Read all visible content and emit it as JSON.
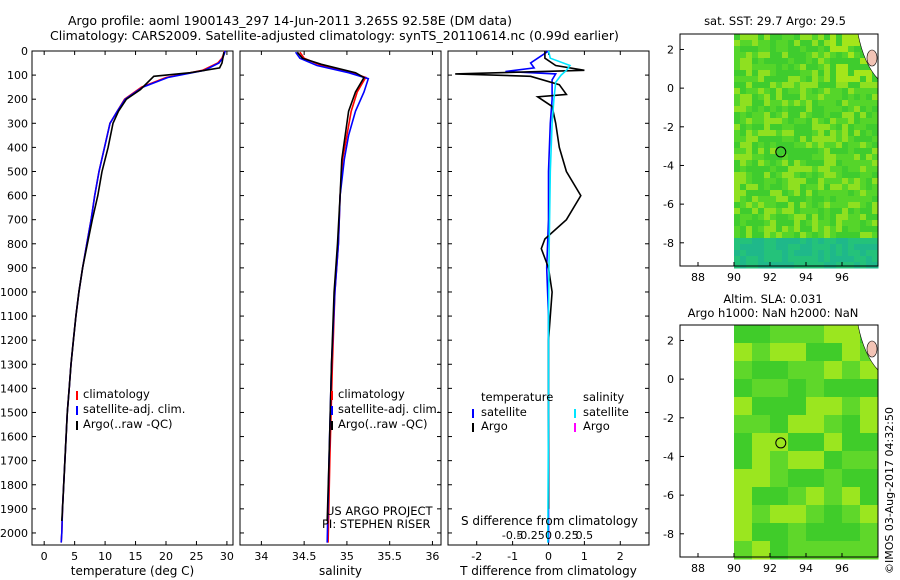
{
  "header": {
    "title_line1": "Argo profile: aoml 1900143_297 14-Jun-2011 3.265S 92.58E (DM data)",
    "title_line2": "Climatology: CARS2009. Satellite-adjusted climatology: synTS_20110614.nc (0.99d earlier)"
  },
  "side_stamp": "©IMOS 03-Aug-2017 04:32:50",
  "colors": {
    "climatology": "#ff0000",
    "satellite": "#0000ff",
    "argo": "#000000",
    "salinity_satellite": "#00e5ff",
    "salinity_argo": "#ff00ff",
    "map_land": "#ffffff",
    "map_green": "#33dd22"
  },
  "chart_data": [
    {
      "type": "line",
      "id": "temperature",
      "xlabel": "temperature (deg C)",
      "ylabel": "",
      "xlim": [
        -2,
        31
      ],
      "ylim": [
        2050,
        0
      ],
      "xticks": [
        0,
        5,
        10,
        15,
        20,
        25,
        30
      ],
      "yticks": [
        0,
        100,
        200,
        300,
        400,
        500,
        600,
        700,
        800,
        900,
        1000,
        1100,
        1200,
        1300,
        1400,
        1500,
        1600,
        1700,
        1800,
        1900,
        2000
      ],
      "legend": [
        "climatology",
        "satellite-adj. clim.",
        "Argo(..raw -QC)"
      ],
      "series": [
        {
          "name": "climatology",
          "color": "#ff0000",
          "points": [
            [
              29.6,
              0
            ],
            [
              29.5,
              10
            ],
            [
              29.2,
              30
            ],
            [
              28.5,
              50
            ],
            [
              26,
              80
            ],
            [
              20,
              110
            ],
            [
              16,
              150
            ],
            [
              13.2,
              200
            ],
            [
              12,
              250
            ],
            [
              10.8,
              300
            ],
            [
              9.9,
              400
            ],
            [
              9,
              500
            ],
            [
              8.3,
              600
            ],
            [
              7.7,
              700
            ],
            [
              7,
              800
            ],
            [
              6.3,
              900
            ],
            [
              5.7,
              1000
            ],
            [
              5.2,
              1100
            ],
            [
              4.8,
              1200
            ],
            [
              4.4,
              1300
            ],
            [
              4.1,
              1400
            ],
            [
              3.8,
              1500
            ],
            [
              3.6,
              1600
            ],
            [
              3.4,
              1700
            ],
            [
              3.2,
              1800
            ],
            [
              3,
              1900
            ],
            [
              2.9,
              2000
            ],
            [
              2.8,
              2040
            ]
          ]
        },
        {
          "name": "satellite-adj. clim.",
          "color": "#0000ff",
          "points": [
            [
              29.7,
              0
            ],
            [
              29.6,
              10
            ],
            [
              29.3,
              30
            ],
            [
              28.7,
              50
            ],
            [
              26.3,
              80
            ],
            [
              20.3,
              110
            ],
            [
              16.2,
              150
            ],
            [
              13.3,
              200
            ],
            [
              12,
              250
            ],
            [
              10.8,
              300
            ],
            [
              9.9,
              400
            ],
            [
              9,
              500
            ],
            [
              8.3,
              600
            ],
            [
              7.7,
              700
            ],
            [
              7,
              800
            ],
            [
              6.3,
              900
            ],
            [
              5.7,
              1000
            ],
            [
              5.2,
              1100
            ],
            [
              4.8,
              1200
            ],
            [
              4.4,
              1300
            ],
            [
              4.1,
              1400
            ],
            [
              3.8,
              1500
            ],
            [
              3.6,
              1600
            ],
            [
              3.4,
              1700
            ],
            [
              3.2,
              1800
            ],
            [
              3,
              1900
            ],
            [
              2.9,
              2000
            ],
            [
              2.8,
              2040
            ]
          ]
        },
        {
          "name": "Argo(..raw -QC)",
          "color": "#000000",
          "points": [
            [
              29.5,
              5
            ],
            [
              29.4,
              20
            ],
            [
              29.2,
              50
            ],
            [
              28.8,
              70
            ],
            [
              24,
              90
            ],
            [
              18,
              105
            ],
            [
              15.8,
              160
            ],
            [
              13.5,
              200
            ],
            [
              12.2,
              250
            ],
            [
              11.3,
              300
            ],
            [
              10.5,
              400
            ],
            [
              9.5,
              500
            ],
            [
              8.8,
              600
            ],
            [
              7.9,
              700
            ],
            [
              7.1,
              800
            ],
            [
              6.3,
              900
            ],
            [
              5.7,
              1000
            ],
            [
              5.2,
              1100
            ],
            [
              4.8,
              1200
            ],
            [
              4.4,
              1300
            ],
            [
              4.1,
              1400
            ],
            [
              3.8,
              1500
            ],
            [
              3.6,
              1600
            ],
            [
              3.4,
              1700
            ],
            [
              3.2,
              1800
            ],
            [
              3,
              1900
            ],
            [
              2.9,
              1950
            ]
          ]
        }
      ]
    },
    {
      "type": "line",
      "id": "salinity",
      "xlabel": "salinity",
      "xlim": [
        33.75,
        36.1
      ],
      "ylim": [
        2050,
        0
      ],
      "xticks": [
        34,
        34.5,
        35,
        35.5,
        36
      ],
      "xticklabels": [
        "34",
        "34.5",
        "35",
        "35.5",
        "36"
      ],
      "legend": [
        "climatology",
        "satellite-adj. clim.",
        "Argo(..raw -QC)"
      ],
      "credit_line1": "US ARGO PROJECT",
      "credit_line2": "PI: STEPHEN RISER",
      "series": [
        {
          "name": "climatology",
          "color": "#ff0000",
          "points": [
            [
              34.45,
              5
            ],
            [
              34.5,
              30
            ],
            [
              34.7,
              60
            ],
            [
              35.05,
              90
            ],
            [
              35.22,
              110
            ],
            [
              35.12,
              170
            ],
            [
              35.05,
              250
            ],
            [
              35,
              350
            ],
            [
              34.95,
              450
            ],
            [
              34.92,
              600
            ],
            [
              34.9,
              800
            ],
            [
              34.86,
              1000
            ],
            [
              34.83,
              1300
            ],
            [
              34.8,
              1700
            ],
            [
              34.78,
              2040
            ]
          ]
        },
        {
          "name": "satellite-adj. clim.",
          "color": "#0000ff",
          "points": [
            [
              34.4,
              5
            ],
            [
              34.45,
              30
            ],
            [
              34.65,
              60
            ],
            [
              35.02,
              90
            ],
            [
              35.25,
              115
            ],
            [
              35.2,
              170
            ],
            [
              35.1,
              250
            ],
            [
              35.02,
              350
            ],
            [
              34.97,
              450
            ],
            [
              34.92,
              600
            ],
            [
              34.9,
              800
            ],
            [
              34.86,
              1000
            ],
            [
              34.82,
              1300
            ],
            [
              34.79,
              1700
            ],
            [
              34.77,
              2040
            ]
          ]
        },
        {
          "name": "Argo(..raw -QC)",
          "color": "#000000",
          "points": [
            [
              34.42,
              5
            ],
            [
              34.48,
              30
            ],
            [
              34.7,
              55
            ],
            [
              35.1,
              90
            ],
            [
              35.2,
              110
            ],
            [
              35.1,
              170
            ],
            [
              35.02,
              250
            ],
            [
              34.98,
              350
            ],
            [
              34.94,
              450
            ],
            [
              34.92,
              600
            ],
            [
              34.89,
              800
            ],
            [
              34.85,
              1000
            ],
            [
              34.82,
              1300
            ],
            [
              34.79,
              1700
            ],
            [
              34.77,
              1950
            ]
          ]
        }
      ]
    },
    {
      "type": "line",
      "id": "differences",
      "xlabel": "T difference from climatology",
      "top_axis_label": "S difference from climatology",
      "xlim": [
        -2.8,
        2.8
      ],
      "ylim": [
        2050,
        0
      ],
      "xticks": [
        -2,
        -1,
        0,
        1,
        2
      ],
      "xticklabels": [
        "-2",
        "-1",
        "0",
        "1",
        "2"
      ],
      "sticks": [
        -0.5,
        -0.25,
        0,
        0.25,
        0.5
      ],
      "sticklabels": [
        "-0.5",
        "-0.25",
        "0",
        "0.25",
        "0.5"
      ],
      "legend": {
        "temperature_title": "temperature",
        "salinity_title": "salinity",
        "t_satellite": "satellite",
        "t_argo": "Argo",
        "s_satellite": "satellite",
        "s_argo": "Argo"
      },
      "series": [
        {
          "name": "T satellite",
          "color": "#0000ff",
          "points": [
            [
              0,
              0
            ],
            [
              -0.2,
              20
            ],
            [
              -0.5,
              50
            ],
            [
              -0.4,
              70
            ],
            [
              -1.2,
              85
            ],
            [
              0.2,
              95
            ],
            [
              0.1,
              120
            ],
            [
              0.1,
              200
            ],
            [
              0.05,
              300
            ],
            [
              0,
              500
            ],
            [
              0,
              700
            ],
            [
              -0.05,
              900
            ],
            [
              0,
              1100
            ],
            [
              0,
              1500
            ],
            [
              0,
              2040
            ]
          ]
        },
        {
          "name": "T Argo",
          "color": "#000000",
          "points": [
            [
              -0.1,
              0
            ],
            [
              -0.1,
              30
            ],
            [
              0.2,
              60
            ],
            [
              1,
              80
            ],
            [
              -2.6,
              95
            ],
            [
              -0.5,
              105
            ],
            [
              0.3,
              140
            ],
            [
              0.5,
              180
            ],
            [
              -0.3,
              190
            ],
            [
              0.1,
              230
            ],
            [
              0.2,
              300
            ],
            [
              0.3,
              400
            ],
            [
              0.5,
              500
            ],
            [
              0.9,
              600
            ],
            [
              0.5,
              700
            ],
            [
              -0.1,
              780
            ],
            [
              -0.2,
              820
            ],
            [
              0,
              900
            ],
            [
              0.1,
              1000
            ],
            [
              0,
              1200
            ],
            [
              0,
              1500
            ],
            [
              0,
              1900
            ]
          ]
        },
        {
          "name": "S satellite",
          "color": "#00e5ff",
          "points": [
            [
              0,
              0
            ],
            [
              0.05,
              30
            ],
            [
              0.6,
              60
            ],
            [
              0.5,
              80
            ],
            [
              0.35,
              100
            ],
            [
              0.2,
              130
            ],
            [
              0.15,
              200
            ],
            [
              0.1,
              300
            ],
            [
              0.05,
              500
            ],
            [
              0.02,
              800
            ],
            [
              0,
              1100
            ],
            [
              0,
              1500
            ],
            [
              -0.02,
              2040
            ]
          ]
        },
        {
          "name": "S Argo",
          "color": "#ff00ff",
          "points": []
        }
      ]
    },
    {
      "type": "heatmap",
      "id": "sst-map",
      "title": "sat. SST: 29.7  Argo: 29.5",
      "xlim": [
        87,
        98
      ],
      "ylim": [
        -9.2,
        2.8
      ],
      "xticks": [
        88,
        90,
        92,
        94,
        96
      ],
      "yticks": [
        2,
        0,
        -2,
        -4,
        -6,
        -8
      ],
      "marker": [
        92.6,
        -3.3
      ]
    },
    {
      "type": "heatmap",
      "id": "sla-map",
      "title": "Altim. SLA: 0.031",
      "subtitle": "Argo h1000: NaN h2000: NaN",
      "xlim": [
        87,
        98
      ],
      "ylim": [
        -9.2,
        2.8
      ],
      "xticks": [
        88,
        90,
        92,
        94,
        96
      ],
      "yticks": [
        2,
        0,
        -2,
        -4,
        -6,
        -8
      ],
      "marker": [
        92.6,
        -3.3
      ]
    }
  ]
}
